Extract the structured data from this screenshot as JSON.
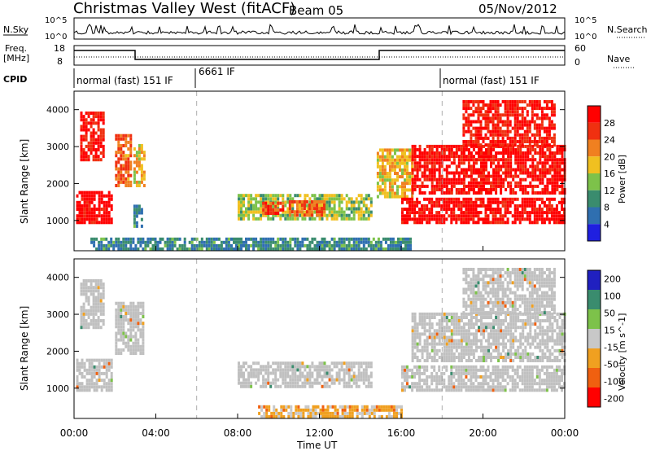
{
  "header": {
    "title": "Christmas Valley West (fitACF)",
    "beam": "Beam 05",
    "date": "05/Nov/2012"
  },
  "top_panels": {
    "nsky_label": "N.Sky",
    "nsearch_label": "N.Search",
    "nsky_ticks": [
      "10^5",
      "10^0"
    ],
    "nsky_right_ticks": [
      "10^5",
      "10^0"
    ],
    "freq_label": "Freq.",
    "freq_unit": "[MHz]",
    "freq_ticks": [
      "18",
      "8"
    ],
    "nave_label": "Nave",
    "nave_ticks": [
      "60",
      "0"
    ],
    "cpid_label": "CPID",
    "cpid_segments": [
      {
        "label": "normal (fast) 151 IF",
        "start_hour": 0
      },
      {
        "label": "6661 IF",
        "start_hour": 6
      },
      {
        "label": "normal (fast) 151 IF",
        "start_hour": 18
      }
    ]
  },
  "colors": {
    "power": [
      "#1f1fe0",
      "#2f6fb0",
      "#3a8c6e",
      "#7dc24a",
      "#f0c020",
      "#f08020",
      "#f03010",
      "#ff0000"
    ],
    "velocity": [
      "#2020c0",
      "#3a8c6e",
      "#7dc24a",
      "#c8c8c8",
      "#f0a020",
      "#f06010",
      "#ff0000"
    ],
    "ground": "#c0c0c0"
  },
  "chart_data": [
    {
      "type": "heatmap",
      "title": "Power",
      "xlabel": "Time UT",
      "ylabel": "Slant Range [km]",
      "xlim_hours": [
        0,
        24
      ],
      "ylim_km": [
        180,
        4500
      ],
      "x_ticks": [
        "00:00",
        "04:00",
        "08:00",
        "12:00",
        "16:00",
        "20:00",
        "00:00"
      ],
      "y_ticks": [
        1000,
        2000,
        3000,
        4000
      ],
      "colorbar": {
        "label": "Power [dB]",
        "ticks": [
          "4",
          "8",
          "12",
          "16",
          "20",
          "24",
          "28"
        ],
        "range": [
          0,
          30
        ]
      },
      "regions": [
        {
          "hours": [
            0.1,
            1.8
          ],
          "range_km": [
            900,
            1800
          ],
          "level": 29
        },
        {
          "hours": [
            0.3,
            1.5
          ],
          "range_km": [
            2600,
            3900
          ],
          "level": 27
        },
        {
          "hours": [
            2.0,
            2.8
          ],
          "range_km": [
            1900,
            3300
          ],
          "level": 22
        },
        {
          "hours": [
            2.9,
            3.4
          ],
          "range_km": [
            1900,
            3000
          ],
          "level": 18
        },
        {
          "hours": [
            2.9,
            3.3
          ],
          "range_km": [
            800,
            1400
          ],
          "level": 8
        },
        {
          "hours": [
            8.0,
            14.5
          ],
          "range_km": [
            1000,
            1700
          ],
          "level": 14
        },
        {
          "hours": [
            9.2,
            10.2
          ],
          "range_km": [
            1150,
            1500
          ],
          "level": 24
        },
        {
          "hours": [
            10.5,
            12.2
          ],
          "range_km": [
            1100,
            1500
          ],
          "level": 22
        },
        {
          "hours": [
            0.8,
            16.5
          ],
          "range_km": [
            180,
            500
          ],
          "level": 8
        },
        {
          "hours": [
            14.8,
            16.5
          ],
          "range_km": [
            1600,
            2900
          ],
          "level": 18
        },
        {
          "hours": [
            16.0,
            24.0
          ],
          "range_km": [
            900,
            1600
          ],
          "level": 29
        },
        {
          "hours": [
            16.5,
            24.0
          ],
          "range_km": [
            1700,
            3000
          ],
          "level": 28
        },
        {
          "hours": [
            19.0,
            23.5
          ],
          "range_km": [
            3000,
            4200
          ],
          "level": 27
        }
      ]
    },
    {
      "type": "heatmap",
      "title": "Velocity",
      "xlabel": "Time UT",
      "ylabel": "Slant Range [km]",
      "xlim_hours": [
        0,
        24
      ],
      "ylim_km": [
        180,
        4500
      ],
      "x_ticks": [
        "00:00",
        "04:00",
        "08:00",
        "12:00",
        "16:00",
        "20:00",
        "00:00"
      ],
      "y_ticks": [
        1000,
        2000,
        3000,
        4000
      ],
      "colorbar": {
        "label": "Velocity [m s^-1]",
        "ticks": [
          "200",
          "100",
          "50",
          "15",
          "-15",
          "-50",
          "-100",
          "-200"
        ],
        "range": [
          -250,
          250
        ]
      },
      "regions": [
        {
          "hours": [
            0.1,
            1.8
          ],
          "range_km": [
            900,
            1800
          ],
          "level": 0,
          "ground": true
        },
        {
          "hours": [
            0.3,
            1.5
          ],
          "range_km": [
            2600,
            3900
          ],
          "level": 0,
          "ground": true
        },
        {
          "hours": [
            2.0,
            3.4
          ],
          "range_km": [
            1900,
            3300
          ],
          "level": 0,
          "ground": true
        },
        {
          "hours": [
            8.0,
            14.5
          ],
          "range_km": [
            1000,
            1700
          ],
          "level": 0,
          "ground": true
        },
        {
          "hours": [
            9.0,
            16.0
          ],
          "range_km": [
            180,
            500
          ],
          "level": -60
        },
        {
          "hours": [
            16.0,
            24.0
          ],
          "range_km": [
            900,
            1600
          ],
          "level": 0,
          "ground": true
        },
        {
          "hours": [
            16.5,
            24.0
          ],
          "range_km": [
            1700,
            3000
          ],
          "level": 0,
          "ground": true
        },
        {
          "hours": [
            19.0,
            23.5
          ],
          "range_km": [
            3000,
            4200
          ],
          "level": 0,
          "ground": true
        }
      ]
    }
  ]
}
